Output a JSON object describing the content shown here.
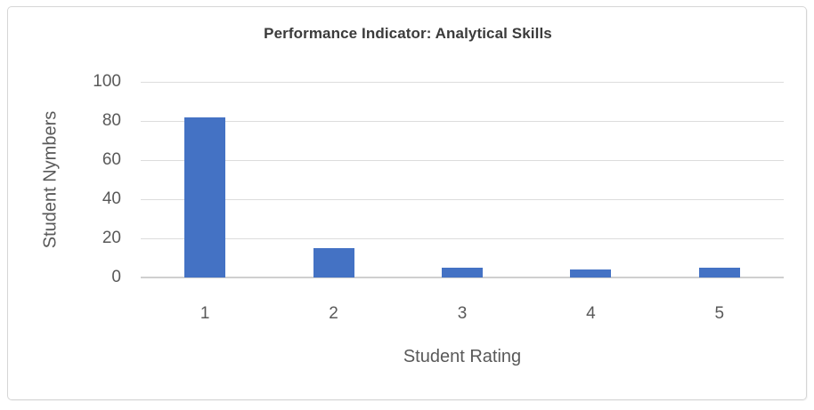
{
  "chart_data": {
    "type": "bar",
    "title": "Performance Indicator: Analytical Skills",
    "xlabel": "Student Rating",
    "ylabel": "Student Nymbers",
    "categories": [
      "1",
      "2",
      "3",
      "4",
      "5"
    ],
    "values": [
      82,
      15,
      5,
      4,
      5
    ],
    "ylim": [
      0,
      100
    ],
    "yticks": [
      0,
      20,
      40,
      60,
      80,
      100
    ],
    "grid": true,
    "legend": "none",
    "bar_color": "#4472C4"
  },
  "colors": {
    "bar": "#4472C4",
    "gridline": "#DCDCDC",
    "axis_line": "#CFCFCF",
    "frame_border": "#D6D6D6",
    "title_text": "#3B3B3B",
    "axis_text": "#595959"
  }
}
